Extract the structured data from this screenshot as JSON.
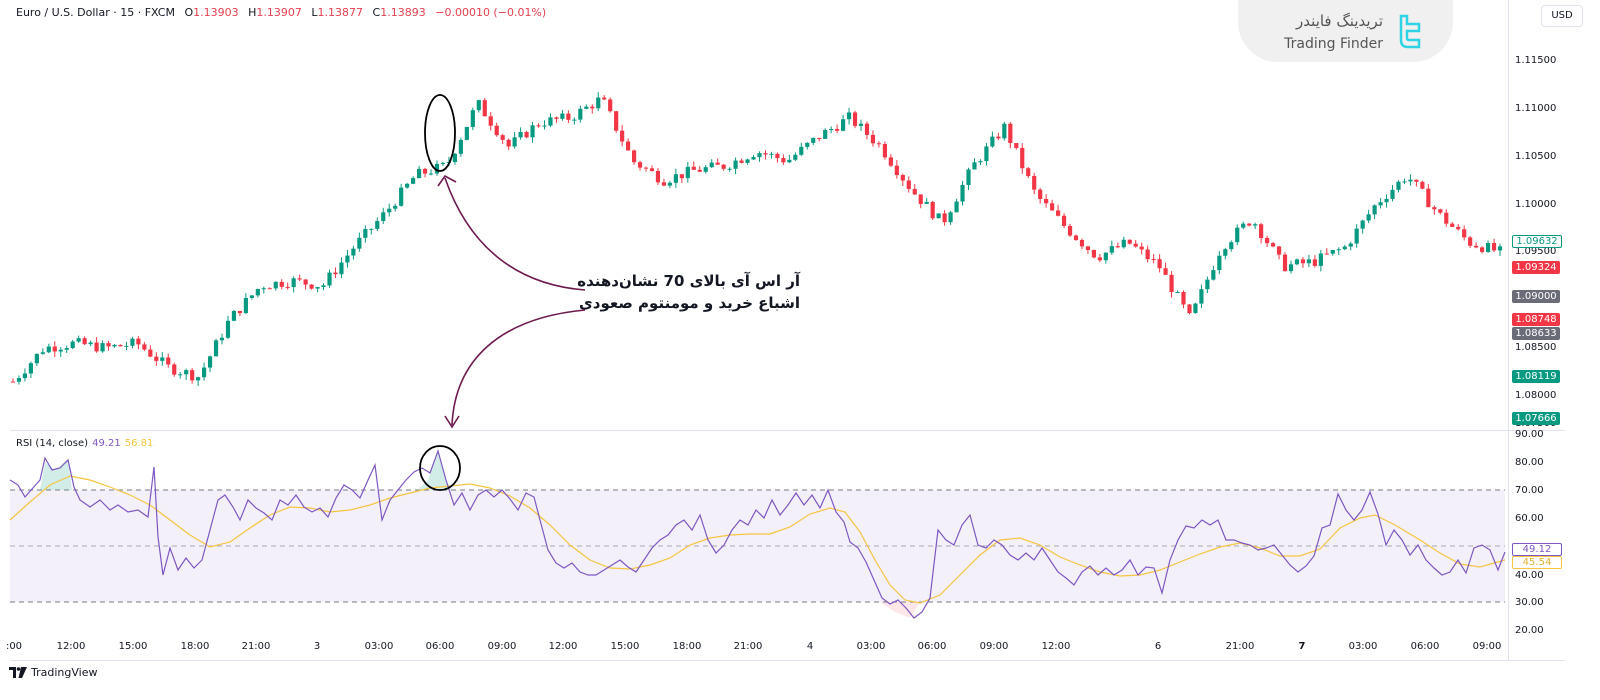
{
  "header": {
    "symbol": "Euro / U.S. Dollar · 15 · FXCM",
    "open_label": "O",
    "open": "1.13903",
    "high_label": "H",
    "high": "1.13907",
    "low_label": "L",
    "low": "1.13877",
    "close_label": "C",
    "close": "1.13893",
    "change": "−0.00010 (−0.01%)"
  },
  "logo": {
    "fa": "تریدینگ فایندر",
    "en": "Trading Finder"
  },
  "currency_button": "USD",
  "price_axis": [
    "1.11500",
    "1.11000",
    "1.10500",
    "1.10000",
    "1.09500",
    "1.09000",
    "1.08500",
    "1.08000",
    "1.07500"
  ],
  "price_tags": [
    {
      "value": "1.09632",
      "color": "#ffffff",
      "border": "#089981",
      "text": "#089981"
    },
    {
      "value": "1.09324",
      "color": "#f23645",
      "text": "#ffffff"
    },
    {
      "value": "1.09000",
      "color": "#6a6d78",
      "text": "#ffffff"
    },
    {
      "value": "1.08748",
      "color": "#f23645",
      "text": "#ffffff"
    },
    {
      "value": "1.08633",
      "color": "#6a6d78",
      "text": "#ffffff"
    },
    {
      "value": "1.08119",
      "color": "#089981",
      "text": "#ffffff"
    },
    {
      "value": "1.07666",
      "color": "#089981",
      "text": "#ffffff"
    }
  ],
  "rsi": {
    "title": "RSI (14, close)",
    "value": "49.21",
    "ma_value": "56.81",
    "axis": [
      "90.00",
      "80.00",
      "70.00",
      "60.00",
      "50.00",
      "40.00",
      "30.00",
      "20.00"
    ],
    "last_tag": "49.12",
    "last_ma_tag": "45.54"
  },
  "time_axis": [
    ":00",
    "12:00",
    "15:00",
    "18:00",
    "21:00",
    "3",
    "03:00",
    "06:00",
    "09:00",
    "12:00",
    "15:00",
    "18:00",
    "21:00",
    "4",
    "03:00",
    "06:00",
    "09:00",
    "12:00",
    "6",
    "21:00",
    "7",
    "03:00",
    "06:00",
    "09:00"
  ],
  "annotation": {
    "line1": "آر اس آی بالای 70 نشان‌دهنده",
    "line2": "اشباع خرید و مومنتوم صعودی"
  },
  "footer": {
    "brand": "TradingView"
  },
  "colors": {
    "up": "#089981",
    "down": "#f23645",
    "rsi": "#7e57c2",
    "rsi_ma": "#f5c542",
    "annot": "#6d1b4f"
  },
  "chart_data": [
    {
      "type": "candlestick",
      "title": "Euro / U.S. Dollar · 15 · FXCM",
      "ylabel": "USD",
      "ylim": [
        1.0745,
        1.1175
      ],
      "x_ticks": [
        ":00",
        "12:00",
        "15:00",
        "18:00",
        "21:00",
        "3",
        "03:00",
        "06:00",
        "09:00",
        "12:00",
        "15:00",
        "18:00",
        "21:00",
        "4",
        "03:00",
        "06:00",
        "09:00",
        "12:00",
        "6",
        "21:00",
        "7",
        "03:00",
        "06:00",
        "09:00"
      ],
      "approx_close_path": [
        1.0815,
        1.085,
        1.0855,
        1.085,
        1.0855,
        1.083,
        1.082,
        1.088,
        1.0915,
        1.092,
        1.0915,
        1.0955,
        1.099,
        1.103,
        1.104,
        1.1105,
        1.106,
        1.1085,
        1.109,
        1.111,
        1.1045,
        1.1025,
        1.1035,
        1.104,
        1.1055,
        1.1045,
        1.107,
        1.109,
        1.106,
        1.1015,
        1.098,
        1.104,
        1.108,
        1.101,
        1.0975,
        1.0945,
        1.096,
        1.0935,
        1.088,
        1.0955,
        1.0985,
        1.0935,
        1.094,
        1.0955,
        1.1,
        1.103,
        1.099,
        1.096,
        1.095
      ],
      "last_price": 1.09324
    },
    {
      "type": "line",
      "title": "RSI (14, close)",
      "ylim": [
        17,
        90
      ],
      "bands": [
        30,
        50,
        70
      ],
      "series": [
        {
          "name": "RSI",
          "last": 49.12
        },
        {
          "name": "RSI MA",
          "last": 45.54
        }
      ]
    }
  ]
}
